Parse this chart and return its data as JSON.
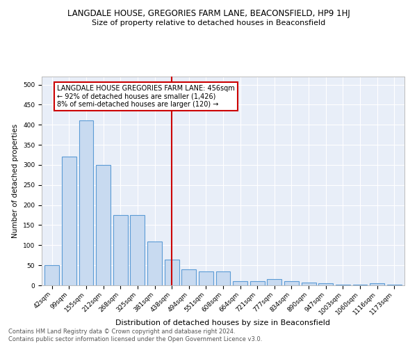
{
  "title": "LANGDALE HOUSE, GREGORIES FARM LANE, BEACONSFIELD, HP9 1HJ",
  "subtitle": "Size of property relative to detached houses in Beaconsfield",
  "xlabel": "Distribution of detached houses by size in Beaconsfield",
  "ylabel": "Number of detached properties",
  "categories": [
    "42sqm",
    "99sqm",
    "155sqm",
    "212sqm",
    "268sqm",
    "325sqm",
    "381sqm",
    "438sqm",
    "494sqm",
    "551sqm",
    "608sqm",
    "664sqm",
    "721sqm",
    "777sqm",
    "834sqm",
    "890sqm",
    "947sqm",
    "1003sqm",
    "1060sqm",
    "1116sqm",
    "1173sqm"
  ],
  "values": [
    50,
    320,
    410,
    300,
    175,
    175,
    110,
    65,
    40,
    35,
    35,
    10,
    10,
    15,
    10,
    7,
    5,
    2,
    2,
    5,
    2
  ],
  "bar_color": "#c8daf0",
  "bar_edge_color": "#5b9bd5",
  "vline_x_index": 7,
  "vline_color": "#cc0000",
  "annotation_text": "LANGDALE HOUSE GREGORIES FARM LANE: 456sqm\n← 92% of detached houses are smaller (1,426)\n8% of semi-detached houses are larger (120) →",
  "annotation_box_edge_color": "#cc0000",
  "annotation_box_face_color": "#ffffff",
  "ylim": [
    0,
    520
  ],
  "yticks": [
    0,
    50,
    100,
    150,
    200,
    250,
    300,
    350,
    400,
    450,
    500
  ],
  "plot_bg_color": "#e8eef8",
  "footer_line1": "Contains HM Land Registry data © Crown copyright and database right 2024.",
  "footer_line2": "Contains public sector information licensed under the Open Government Licence v3.0.",
  "title_fontsize": 8.5,
  "subtitle_fontsize": 8,
  "xlabel_fontsize": 8,
  "ylabel_fontsize": 7.5,
  "tick_fontsize": 6.5,
  "annotation_fontsize": 7,
  "footer_fontsize": 6
}
